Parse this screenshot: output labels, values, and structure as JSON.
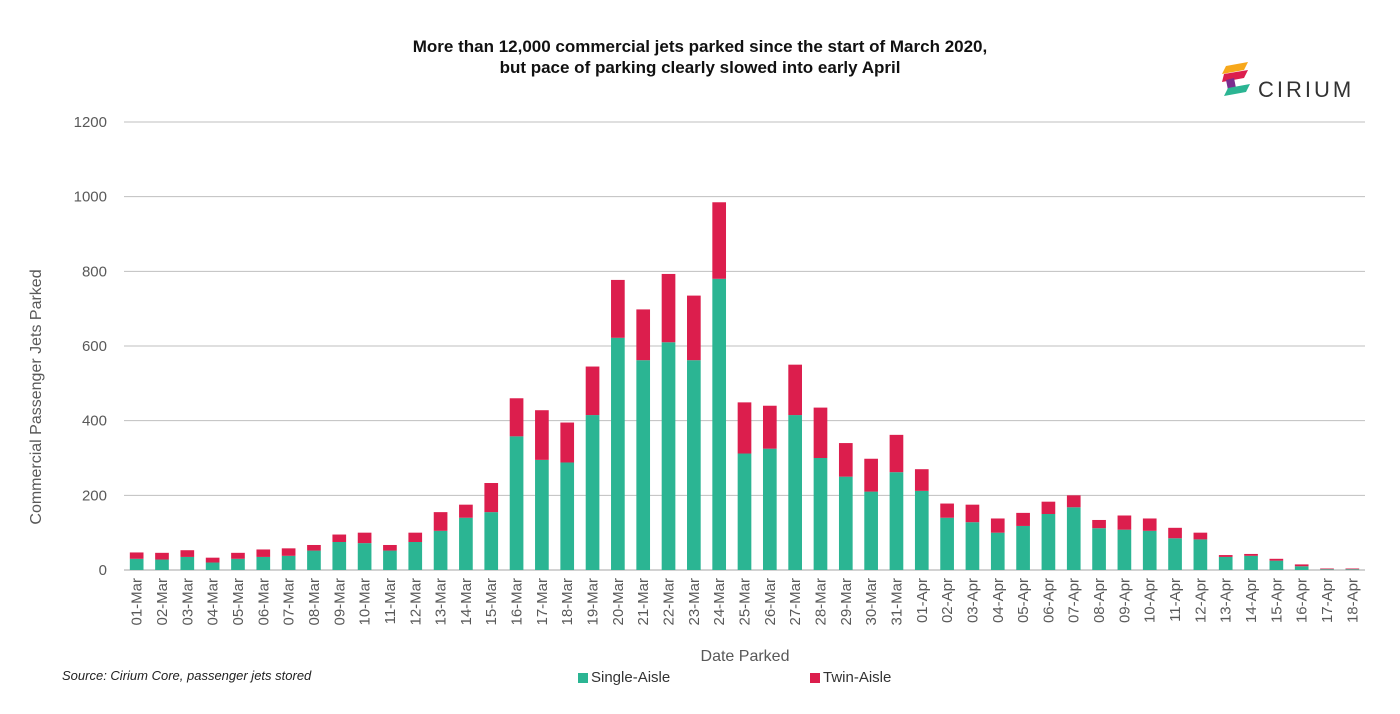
{
  "title_line1": "More than 12,000 commercial jets parked since the start of March 2020,",
  "title_line2": "but pace of parking clearly slowed into early April",
  "logo_text": "CIRIUM",
  "source": "Source: Cirium Core, passenger jets stored",
  "colors": {
    "single_aisle": "#2bb593",
    "twin_aisle": "#dc1e4d",
    "grid": "#bfbfbf",
    "axis_text": "#595959"
  },
  "chart_data": {
    "type": "bar",
    "stacked": true,
    "title": "More than 12,000 commercial jets parked since the start of March 2020, but pace of parking clearly slowed into early April",
    "xlabel": "Date Parked",
    "ylabel": "Commercial Passenger Jets Parked",
    "ylim": [
      0,
      1200
    ],
    "yticks": [
      0,
      200,
      400,
      600,
      800,
      1000,
      1200
    ],
    "grid": true,
    "legend": "bottom",
    "categories": [
      "01-Mar",
      "02-Mar",
      "03-Mar",
      "04-Mar",
      "05-Mar",
      "06-Mar",
      "07-Mar",
      "08-Mar",
      "09-Mar",
      "10-Mar",
      "11-Mar",
      "12-Mar",
      "13-Mar",
      "14-Mar",
      "15-Mar",
      "16-Mar",
      "17-Mar",
      "18-Mar",
      "19-Mar",
      "20-Mar",
      "21-Mar",
      "22-Mar",
      "23-Mar",
      "24-Mar",
      "25-Mar",
      "26-Mar",
      "27-Mar",
      "28-Mar",
      "29-Mar",
      "30-Mar",
      "31-Mar",
      "01-Apr",
      "02-Apr",
      "03-Apr",
      "04-Apr",
      "05-Apr",
      "06-Apr",
      "07-Apr",
      "08-Apr",
      "09-Apr",
      "10-Apr",
      "11-Apr",
      "12-Apr",
      "13-Apr",
      "14-Apr",
      "15-Apr",
      "16-Apr",
      "17-Apr",
      "18-Apr"
    ],
    "series": [
      {
        "name": "Single-Aisle",
        "values": [
          30,
          28,
          35,
          20,
          30,
          35,
          38,
          52,
          75,
          72,
          52,
          75,
          105,
          140,
          155,
          358,
          295,
          288,
          415,
          622,
          562,
          610,
          562,
          780,
          312,
          325,
          415,
          300,
          250,
          210,
          262,
          212,
          140,
          128,
          100,
          118,
          150,
          168,
          112,
          108,
          105,
          85,
          82,
          35,
          38,
          25,
          10,
          2,
          2
        ]
      },
      {
        "name": "Twin-Aisle",
        "values": [
          17,
          18,
          18,
          13,
          16,
          20,
          20,
          15,
          20,
          28,
          15,
          25,
          50,
          35,
          78,
          102,
          133,
          107,
          130,
          155,
          136,
          183,
          173,
          205,
          137,
          115,
          135,
          135,
          90,
          88,
          100,
          58,
          38,
          47,
          38,
          35,
          33,
          32,
          22,
          38,
          33,
          28,
          18,
          5,
          5,
          5,
          5,
          2,
          2
        ]
      }
    ]
  }
}
